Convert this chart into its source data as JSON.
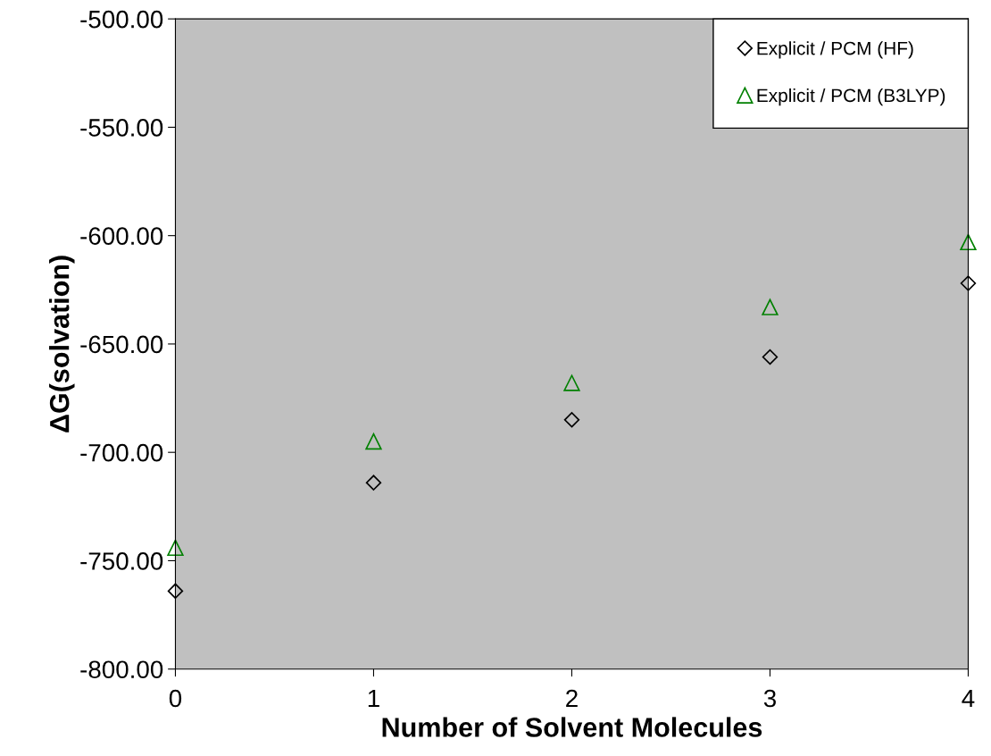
{
  "chart_data": {
    "type": "scatter",
    "xlabel": "Number of Solvent Molecules",
    "ylabel": "ΔG(solvation)",
    "x": [
      0,
      1,
      2,
      3,
      4
    ],
    "series": [
      {
        "name": "Explicit / PCM (HF)",
        "color": "#000000",
        "marker": "diamond",
        "values": [
          -764,
          -714,
          -685,
          -656,
          -622
        ]
      },
      {
        "name": "Explicit / PCM (B3LYP)",
        "color": "#008000",
        "marker": "triangle",
        "values": [
          -744,
          -695,
          -668,
          -633,
          -603
        ]
      }
    ],
    "xlim": [
      0,
      4
    ],
    "xticks": [
      0,
      1,
      2,
      3,
      4
    ],
    "ylim": [
      -800,
      -500
    ],
    "yticks": [
      {
        "value": -800,
        "label": "-800.00"
      },
      {
        "value": -750,
        "label": "-750.00"
      },
      {
        "value": -700,
        "label": "-700.00"
      },
      {
        "value": -650,
        "label": "-650.00"
      },
      {
        "value": -600,
        "label": "-600.00"
      },
      {
        "value": -550,
        "label": "-550.00"
      },
      {
        "value": -500,
        "label": "-500.00"
      }
    ],
    "grid": false,
    "legend": "top right"
  }
}
